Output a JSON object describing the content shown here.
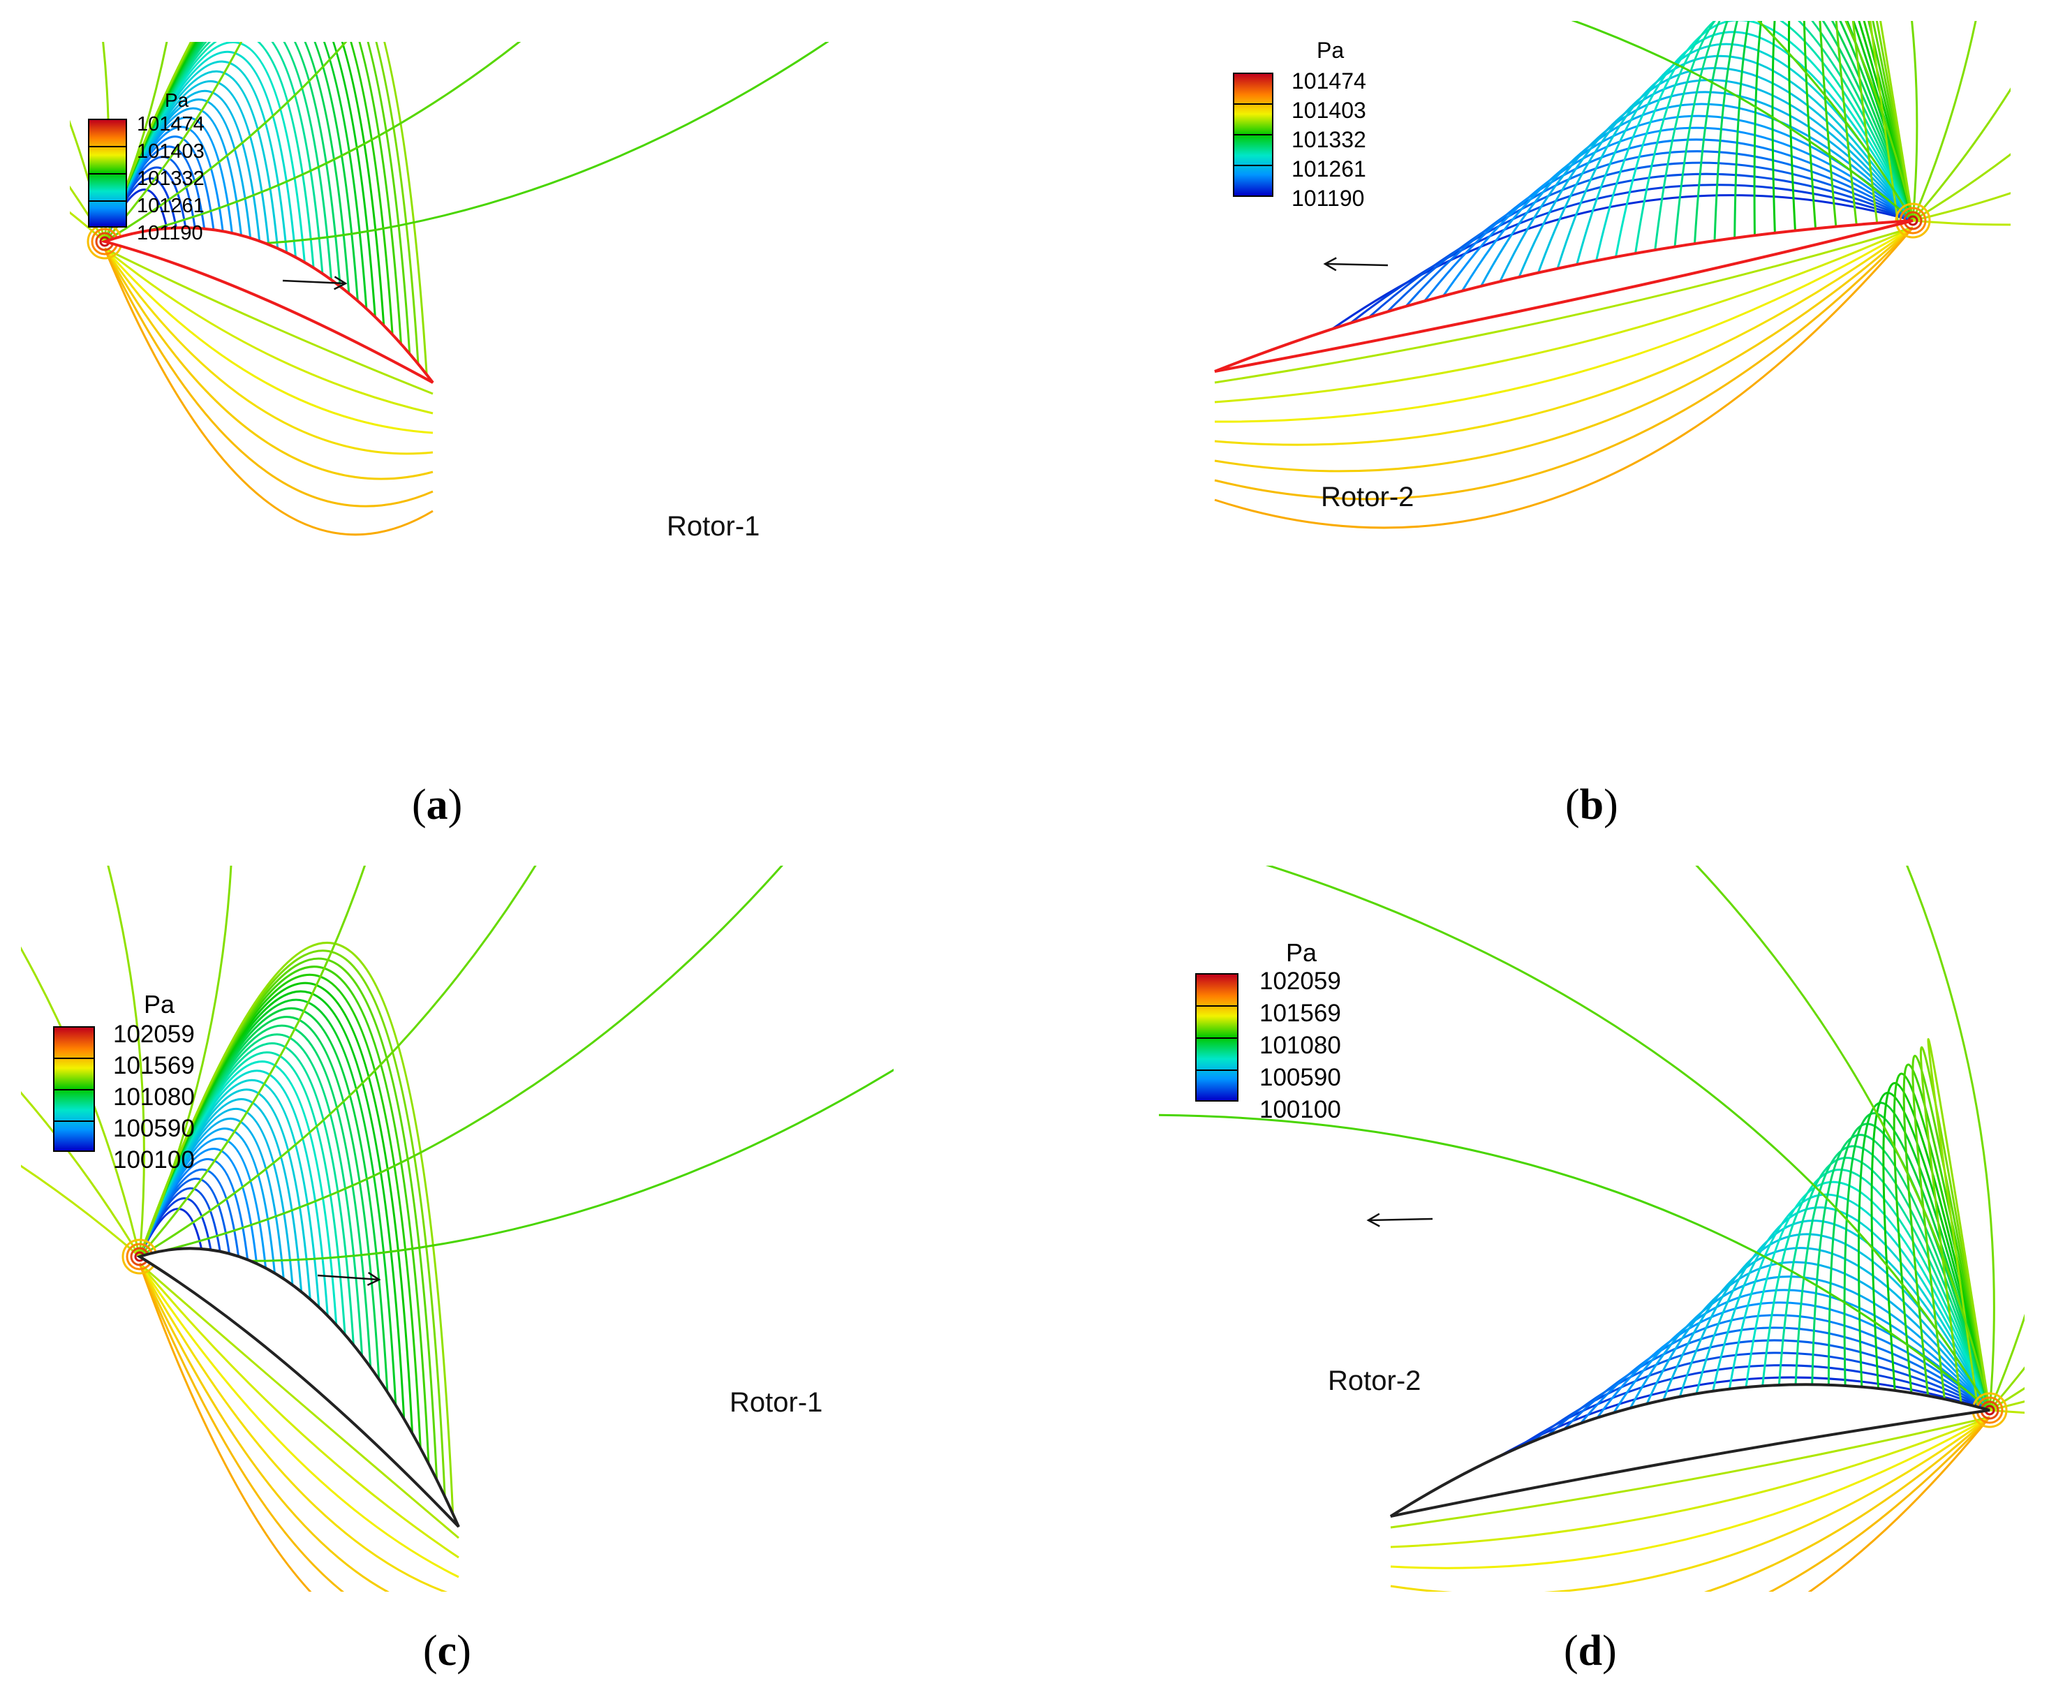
{
  "figure": {
    "panels": [
      {
        "id": "a",
        "caption_letter": "a",
        "legend": {
          "unit": "Pa",
          "values": [
            "101474",
            "101403",
            "101332",
            "101261",
            "101190"
          ]
        },
        "rotor_label": "Rotor-1",
        "airfoil_color": "#ee1c1c"
      },
      {
        "id": "b",
        "caption_letter": "b",
        "legend": {
          "unit": "Pa",
          "values": [
            "101474",
            "101403",
            "101332",
            "101261",
            "101190"
          ]
        },
        "rotor_label": "Rotor-2",
        "airfoil_color": "#ee1c1c"
      },
      {
        "id": "c",
        "caption_letter": "c",
        "legend": {
          "unit": "Pa",
          "values": [
            "102059",
            "101569",
            "101080",
            "100590",
            "100100"
          ]
        },
        "rotor_label": "Rotor-1",
        "airfoil_color": "#222222"
      },
      {
        "id": "d",
        "caption_letter": "d",
        "legend": {
          "unit": "Pa",
          "values": [
            "102059",
            "101569",
            "101080",
            "100590",
            "100100"
          ]
        },
        "rotor_label": "Rotor-2",
        "airfoil_color": "#222222"
      }
    ],
    "colormap": [
      "#c0001a",
      "#ff7f00",
      "#f2f200",
      "#00c800",
      "#00e6c8",
      "#0096ff",
      "#0000c8"
    ]
  }
}
